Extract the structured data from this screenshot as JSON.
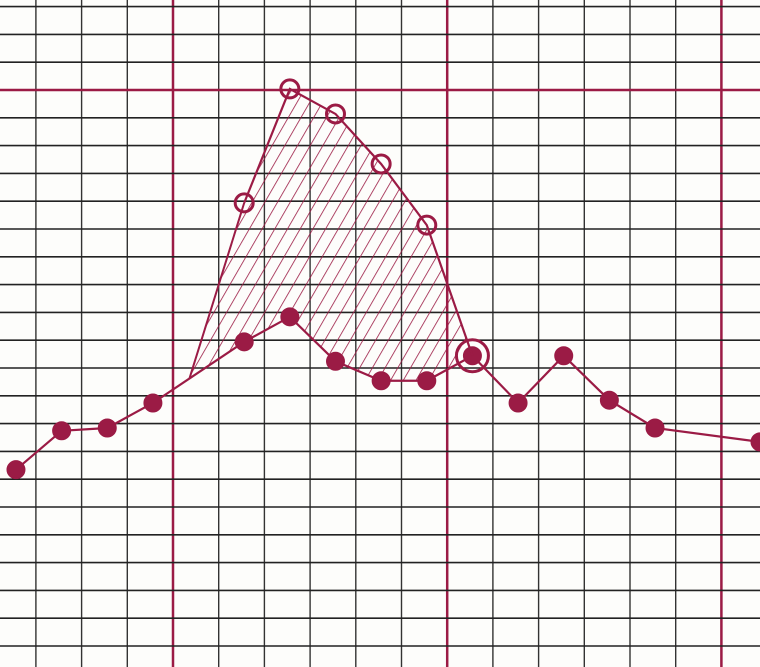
{
  "chart_data": {
    "type": "line",
    "xlim": [
      -0.35,
      16.3
    ],
    "ylim": [
      0,
      24
    ],
    "series": [
      {
        "color": "#9b1b45",
        "marker": "filled",
        "x": [
          0,
          1,
          2,
          3,
          5,
          6,
          7,
          8,
          9,
          10,
          11,
          12,
          13,
          14,
          16.3
        ],
        "values": [
          7.1,
          8.5,
          8.6,
          9.5,
          11.7,
          12.6,
          11.0,
          10.3,
          10.3,
          11.2,
          9.5,
          11.2,
          9.6,
          8.6,
          8.1
        ]
      },
      {
        "color": "#9b1b45",
        "marker": "open",
        "x": [
          5,
          6,
          7,
          8,
          9,
          10
        ],
        "values": [
          16.7,
          20.8,
          19.9,
          18.1,
          15.9,
          11.2
        ]
      }
    ]
  }
}
